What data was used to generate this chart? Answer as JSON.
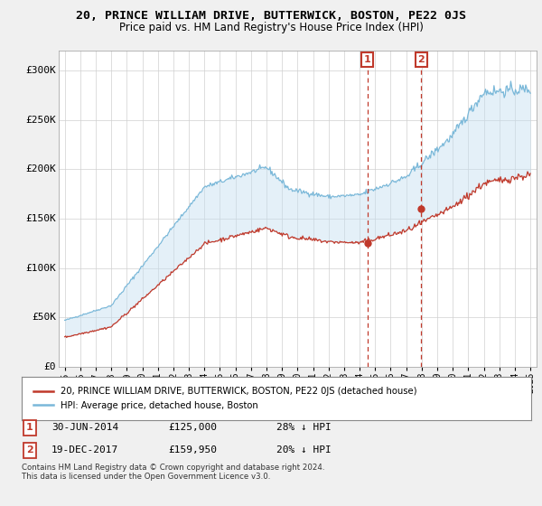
{
  "title": "20, PRINCE WILLIAM DRIVE, BUTTERWICK, BOSTON, PE22 0JS",
  "subtitle": "Price paid vs. HM Land Registry's House Price Index (HPI)",
  "title_fontsize": 10,
  "subtitle_fontsize": 8.5,
  "legend_line1": "20, PRINCE WILLIAM DRIVE, BUTTERWICK, BOSTON, PE22 0JS (detached house)",
  "legend_line2": "HPI: Average price, detached house, Boston",
  "hpi_color": "#7ab8d9",
  "hpi_fill_color": "#c5dff0",
  "price_color": "#c0392b",
  "annotation1_label": "1",
  "annotation1_date": "30-JUN-2014",
  "annotation1_price": "£125,000",
  "annotation1_hpi": "28% ↓ HPI",
  "annotation1_year": 2014.5,
  "annotation1_value": 125000,
  "annotation2_label": "2",
  "annotation2_date": "19-DEC-2017",
  "annotation2_price": "£159,950",
  "annotation2_hpi": "20% ↓ HPI",
  "annotation2_year": 2017.97,
  "annotation2_value": 159950,
  "footer1": "Contains HM Land Registry data © Crown copyright and database right 2024.",
  "footer2": "This data is licensed under the Open Government Licence v3.0.",
  "ylim": [
    0,
    320000
  ],
  "yticks": [
    0,
    50000,
    100000,
    150000,
    200000,
    250000,
    300000
  ],
  "ytick_labels": [
    "£0",
    "£50K",
    "£100K",
    "£150K",
    "£200K",
    "£250K",
    "£300K"
  ],
  "bg_color": "#f0f0f0",
  "plot_bg_color": "#ffffff",
  "grid_color": "#d0d0d0"
}
